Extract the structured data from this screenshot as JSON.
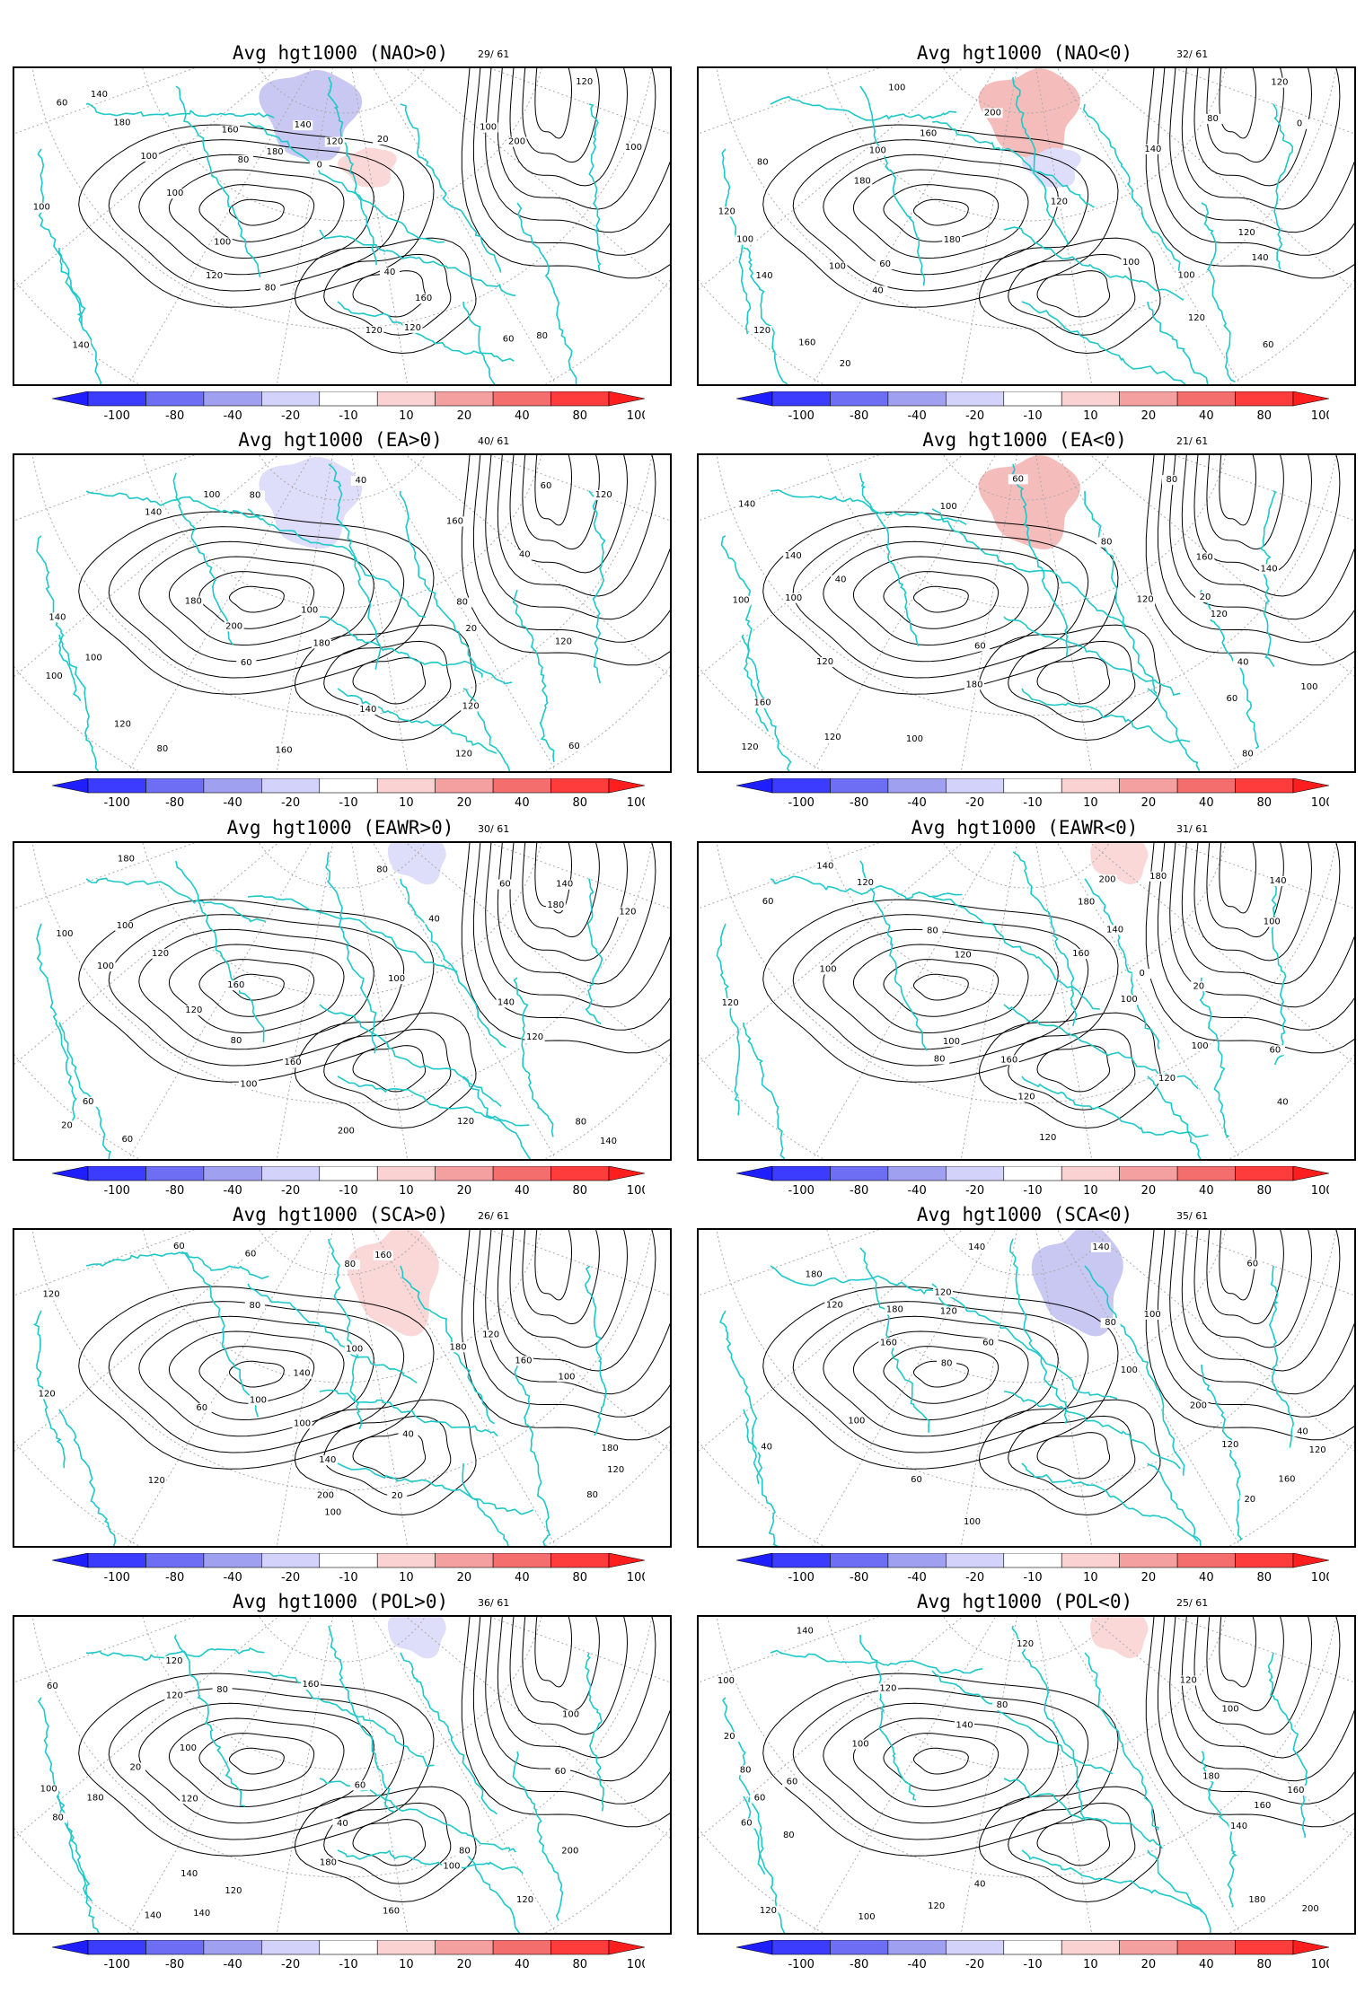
{
  "panels": [
    {
      "title": "Avg hgt1000 (NAO>0)",
      "count": "29/ 61",
      "anomaly": [
        {
          "sign": "negative",
          "level": -20,
          "where": "north-atlantic"
        },
        {
          "sign": "positive",
          "level": 10,
          "where": "central-europe"
        }
      ],
      "contour_labels": [
        "140",
        "160",
        "180",
        "200",
        "180",
        "160",
        "140",
        "120",
        "100",
        "60",
        "80",
        "100",
        "120",
        "140",
        "0",
        "20",
        "40",
        "60",
        "100",
        "120",
        "80",
        "100",
        "120",
        "100",
        "80",
        "100",
        "120"
      ]
    },
    {
      "title": "Avg hgt1000 (NAO<0)",
      "count": "32/ 61",
      "anomaly": [
        {
          "sign": "positive",
          "level": 20,
          "where": "north-atlantic"
        },
        {
          "sign": "negative",
          "level": -10,
          "where": "central-europe"
        }
      ],
      "contour_labels": [
        "100",
        "120",
        "140",
        "160",
        "180",
        "200",
        "180",
        "160",
        "140",
        "120",
        "100",
        "120",
        "140",
        "80",
        "100",
        "0",
        "20",
        "40",
        "60",
        "100",
        "120",
        "80",
        "60",
        "100",
        "120",
        "100",
        "120"
      ]
    },
    {
      "title": "Avg hgt1000 (EA>0)",
      "count": "40/ 61",
      "anomaly": [
        {
          "sign": "negative",
          "level": -10,
          "where": "north-atlantic"
        }
      ],
      "contour_labels": [
        "120",
        "140",
        "160",
        "180",
        "200",
        "180",
        "160",
        "140",
        "120",
        "100",
        "80",
        "100",
        "120",
        "140",
        "60",
        "80",
        "40",
        "20",
        "40",
        "60",
        "100",
        "120",
        "60",
        "80",
        "100",
        "120"
      ]
    },
    {
      "title": "Avg hgt1000 (EA<0)",
      "count": "21/ 61",
      "anomaly": [
        {
          "sign": "positive",
          "level": 20,
          "where": "north-atlantic"
        }
      ],
      "contour_labels": [
        "100",
        "120",
        "140",
        "160",
        "180",
        "160",
        "140",
        "120",
        "100",
        "80",
        "100",
        "120",
        "140",
        "80",
        "60",
        "40",
        "20",
        "40",
        "60",
        "100",
        "120",
        "80",
        "60",
        "100",
        "120"
      ]
    },
    {
      "title": "Avg  hgt1000 (EAWR>0)",
      "count": "30/ 61",
      "anomaly": [
        {
          "sign": "negative",
          "level": -10,
          "where": "northern-europe"
        }
      ],
      "contour_labels": [
        "120",
        "140",
        "160",
        "180",
        "200",
        "180",
        "160",
        "140",
        "120",
        "100",
        "80",
        "100",
        "120",
        "140",
        "80",
        "60",
        "20",
        "40",
        "60",
        "100",
        "120",
        "80",
        "60",
        "100",
        "120",
        "100"
      ]
    },
    {
      "title": "Avg hgt1000 (EAWR<0)",
      "count": "31/ 61",
      "anomaly": [
        {
          "sign": "positive",
          "level": 10,
          "where": "northern-europe"
        }
      ],
      "contour_labels": [
        "100",
        "120",
        "140",
        "160",
        "180",
        "200",
        "180",
        "160",
        "140",
        "120",
        "100",
        "80",
        "100",
        "120",
        "140",
        "80",
        "60",
        "0",
        "20",
        "40",
        "60",
        "100",
        "120",
        "100",
        "120",
        "120"
      ]
    },
    {
      "title": "Avg hgt1000 (SCA>0)",
      "count": "26/ 61",
      "anomaly": [
        {
          "sign": "positive",
          "level": 10,
          "where": "scandinavia"
        }
      ],
      "contour_labels": [
        "100",
        "120",
        "140",
        "160",
        "180",
        "200",
        "180",
        "160",
        "140",
        "120",
        "100",
        "80",
        "100",
        "120",
        "80",
        "60",
        "20",
        "40",
        "60",
        "100",
        "120",
        "80",
        "60",
        "100",
        "120"
      ]
    },
    {
      "title": "Avg hgt1000 (SCA<0)",
      "count": "35/ 61",
      "anomaly": [
        {
          "sign": "negative",
          "level": -20,
          "where": "scandinavia"
        }
      ],
      "contour_labels": [
        "120",
        "140",
        "160",
        "180",
        "200",
        "180",
        "160",
        "140",
        "120",
        "100",
        "80",
        "100",
        "120",
        "40",
        "60",
        "20",
        "40",
        "60",
        "100",
        "120",
        "80",
        "60",
        "100",
        "120"
      ]
    },
    {
      "title": "Avg hgt1000 (POL>0)",
      "count": "36/ 61",
      "anomaly": [
        {
          "sign": "negative",
          "level": -10,
          "where": "northern-europe"
        }
      ],
      "contour_labels": [
        "120",
        "140",
        "160",
        "180",
        "200",
        "180",
        "160",
        "140",
        "120",
        "100",
        "80",
        "100",
        "120",
        "140",
        "80",
        "60",
        "20",
        "40",
        "60",
        "100",
        "120",
        "80",
        "60",
        "100",
        "120"
      ]
    },
    {
      "title": "Avg hgt1000 (POL<0)",
      "count": "25/ 61",
      "anomaly": [
        {
          "sign": "positive",
          "level": 10,
          "where": "northern-europe"
        }
      ],
      "contour_labels": [
        "120",
        "140",
        "160",
        "180",
        "200",
        "180",
        "160",
        "140",
        "120",
        "100",
        "80",
        "100",
        "120",
        "140",
        "80",
        "60",
        "20",
        "40",
        "60",
        "100",
        "120",
        "80",
        "60",
        "100",
        "120"
      ]
    }
  ],
  "colorbar": {
    "labels": [
      "-100",
      "-80",
      "-40",
      "-20",
      "-10",
      "10",
      "20",
      "40",
      "80",
      "100"
    ],
    "colors": [
      "#1e1eff",
      "#3c3cff",
      "#6e6ef5",
      "#a0a0f0",
      "#d2d2fa",
      "#ffffff",
      "#fad2d2",
      "#f5a0a0",
      "#f56e6e",
      "#ff3c3c",
      "#ff1e1e"
    ]
  },
  "colors": {
    "coast": "#1ec8c8",
    "contour": "#000000",
    "grid": "#aaaaaa",
    "positive": "#f5a0a0",
    "negative": "#a0a0f0"
  }
}
